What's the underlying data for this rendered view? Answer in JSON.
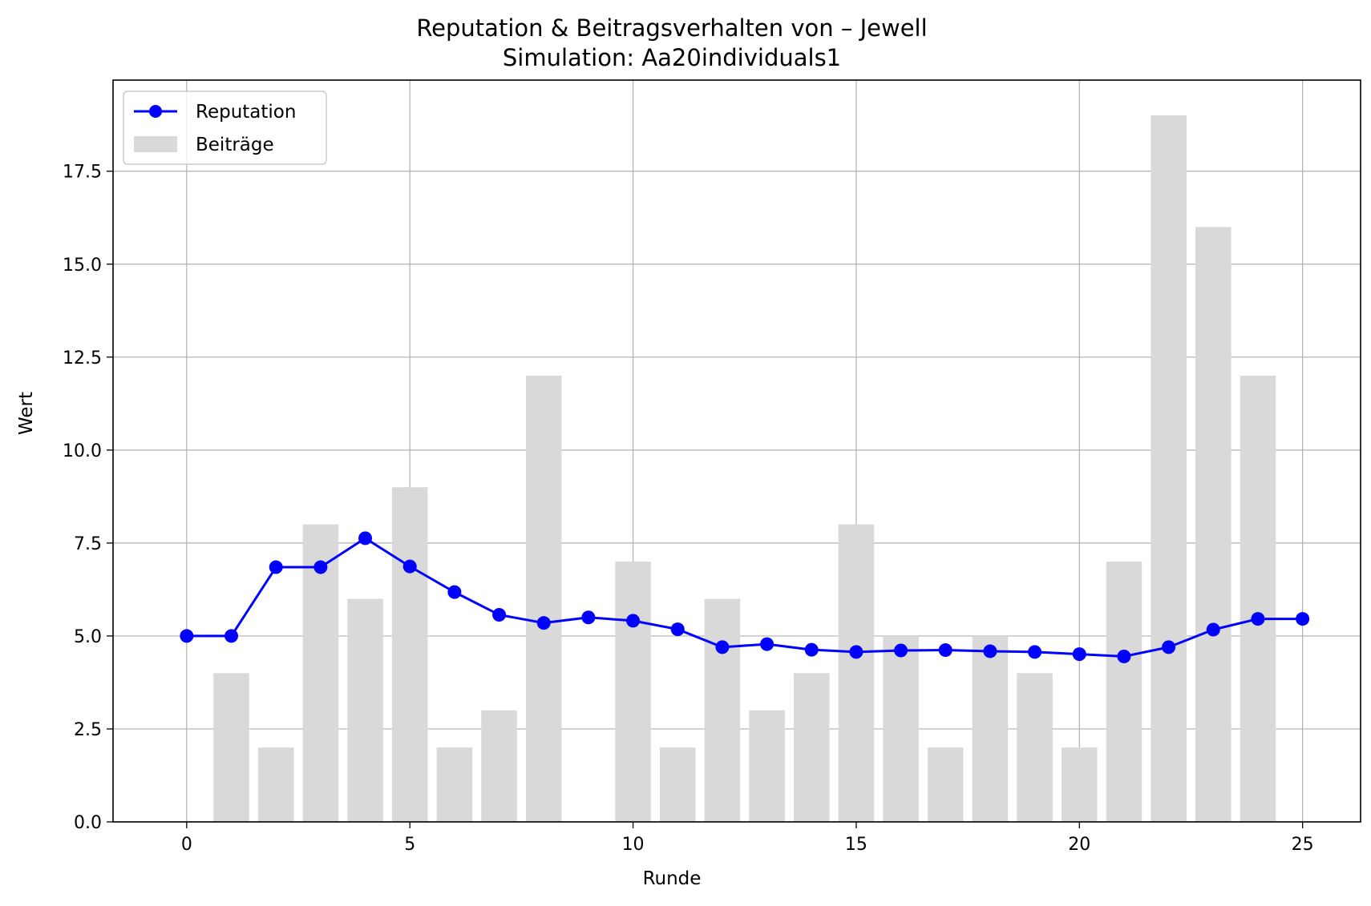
{
  "chart_data": {
    "type": "bar",
    "title": "Reputation & Beitragsverhalten von – Jewell",
    "subtitle": "Simulation: Aa20individuals1",
    "xlabel": "Runde",
    "ylabel": "Wert",
    "xlim": [
      -1.65,
      26.3
    ],
    "ylim": [
      0,
      19.95
    ],
    "xticks": [
      0,
      5,
      10,
      15,
      20,
      25
    ],
    "yticks": [
      0.0,
      2.5,
      5.0,
      7.5,
      10.0,
      12.5,
      15.0,
      17.5
    ],
    "ytick_labels": [
      "0.0",
      "2.5",
      "5.0",
      "7.5",
      "10.0",
      "12.5",
      "15.0",
      "17.5"
    ],
    "grid": true,
    "legend_position": "top-left",
    "x": [
      0,
      1,
      2,
      3,
      4,
      5,
      6,
      7,
      8,
      9,
      10,
      11,
      12,
      13,
      14,
      15,
      16,
      17,
      18,
      19,
      20,
      21,
      22,
      23,
      24,
      25
    ],
    "series": [
      {
        "name": "Reputation",
        "type": "line",
        "color": "#0000ff",
        "values": [
          5.0,
          5.0,
          6.85,
          6.85,
          7.63,
          6.87,
          6.18,
          5.57,
          5.35,
          5.5,
          5.41,
          5.18,
          4.7,
          4.78,
          4.63,
          4.57,
          4.61,
          4.62,
          4.59,
          4.57,
          4.51,
          4.45,
          4.7,
          5.17,
          5.46,
          5.46
        ]
      },
      {
        "name": "Beiträge",
        "type": "bar",
        "color": "#d9d9d9",
        "values": [
          0,
          4,
          2,
          8,
          6,
          9,
          2,
          3,
          12,
          0,
          7,
          2,
          6,
          3,
          4,
          8,
          5,
          2,
          5,
          4,
          2,
          7,
          19,
          16,
          12,
          0
        ]
      }
    ]
  }
}
